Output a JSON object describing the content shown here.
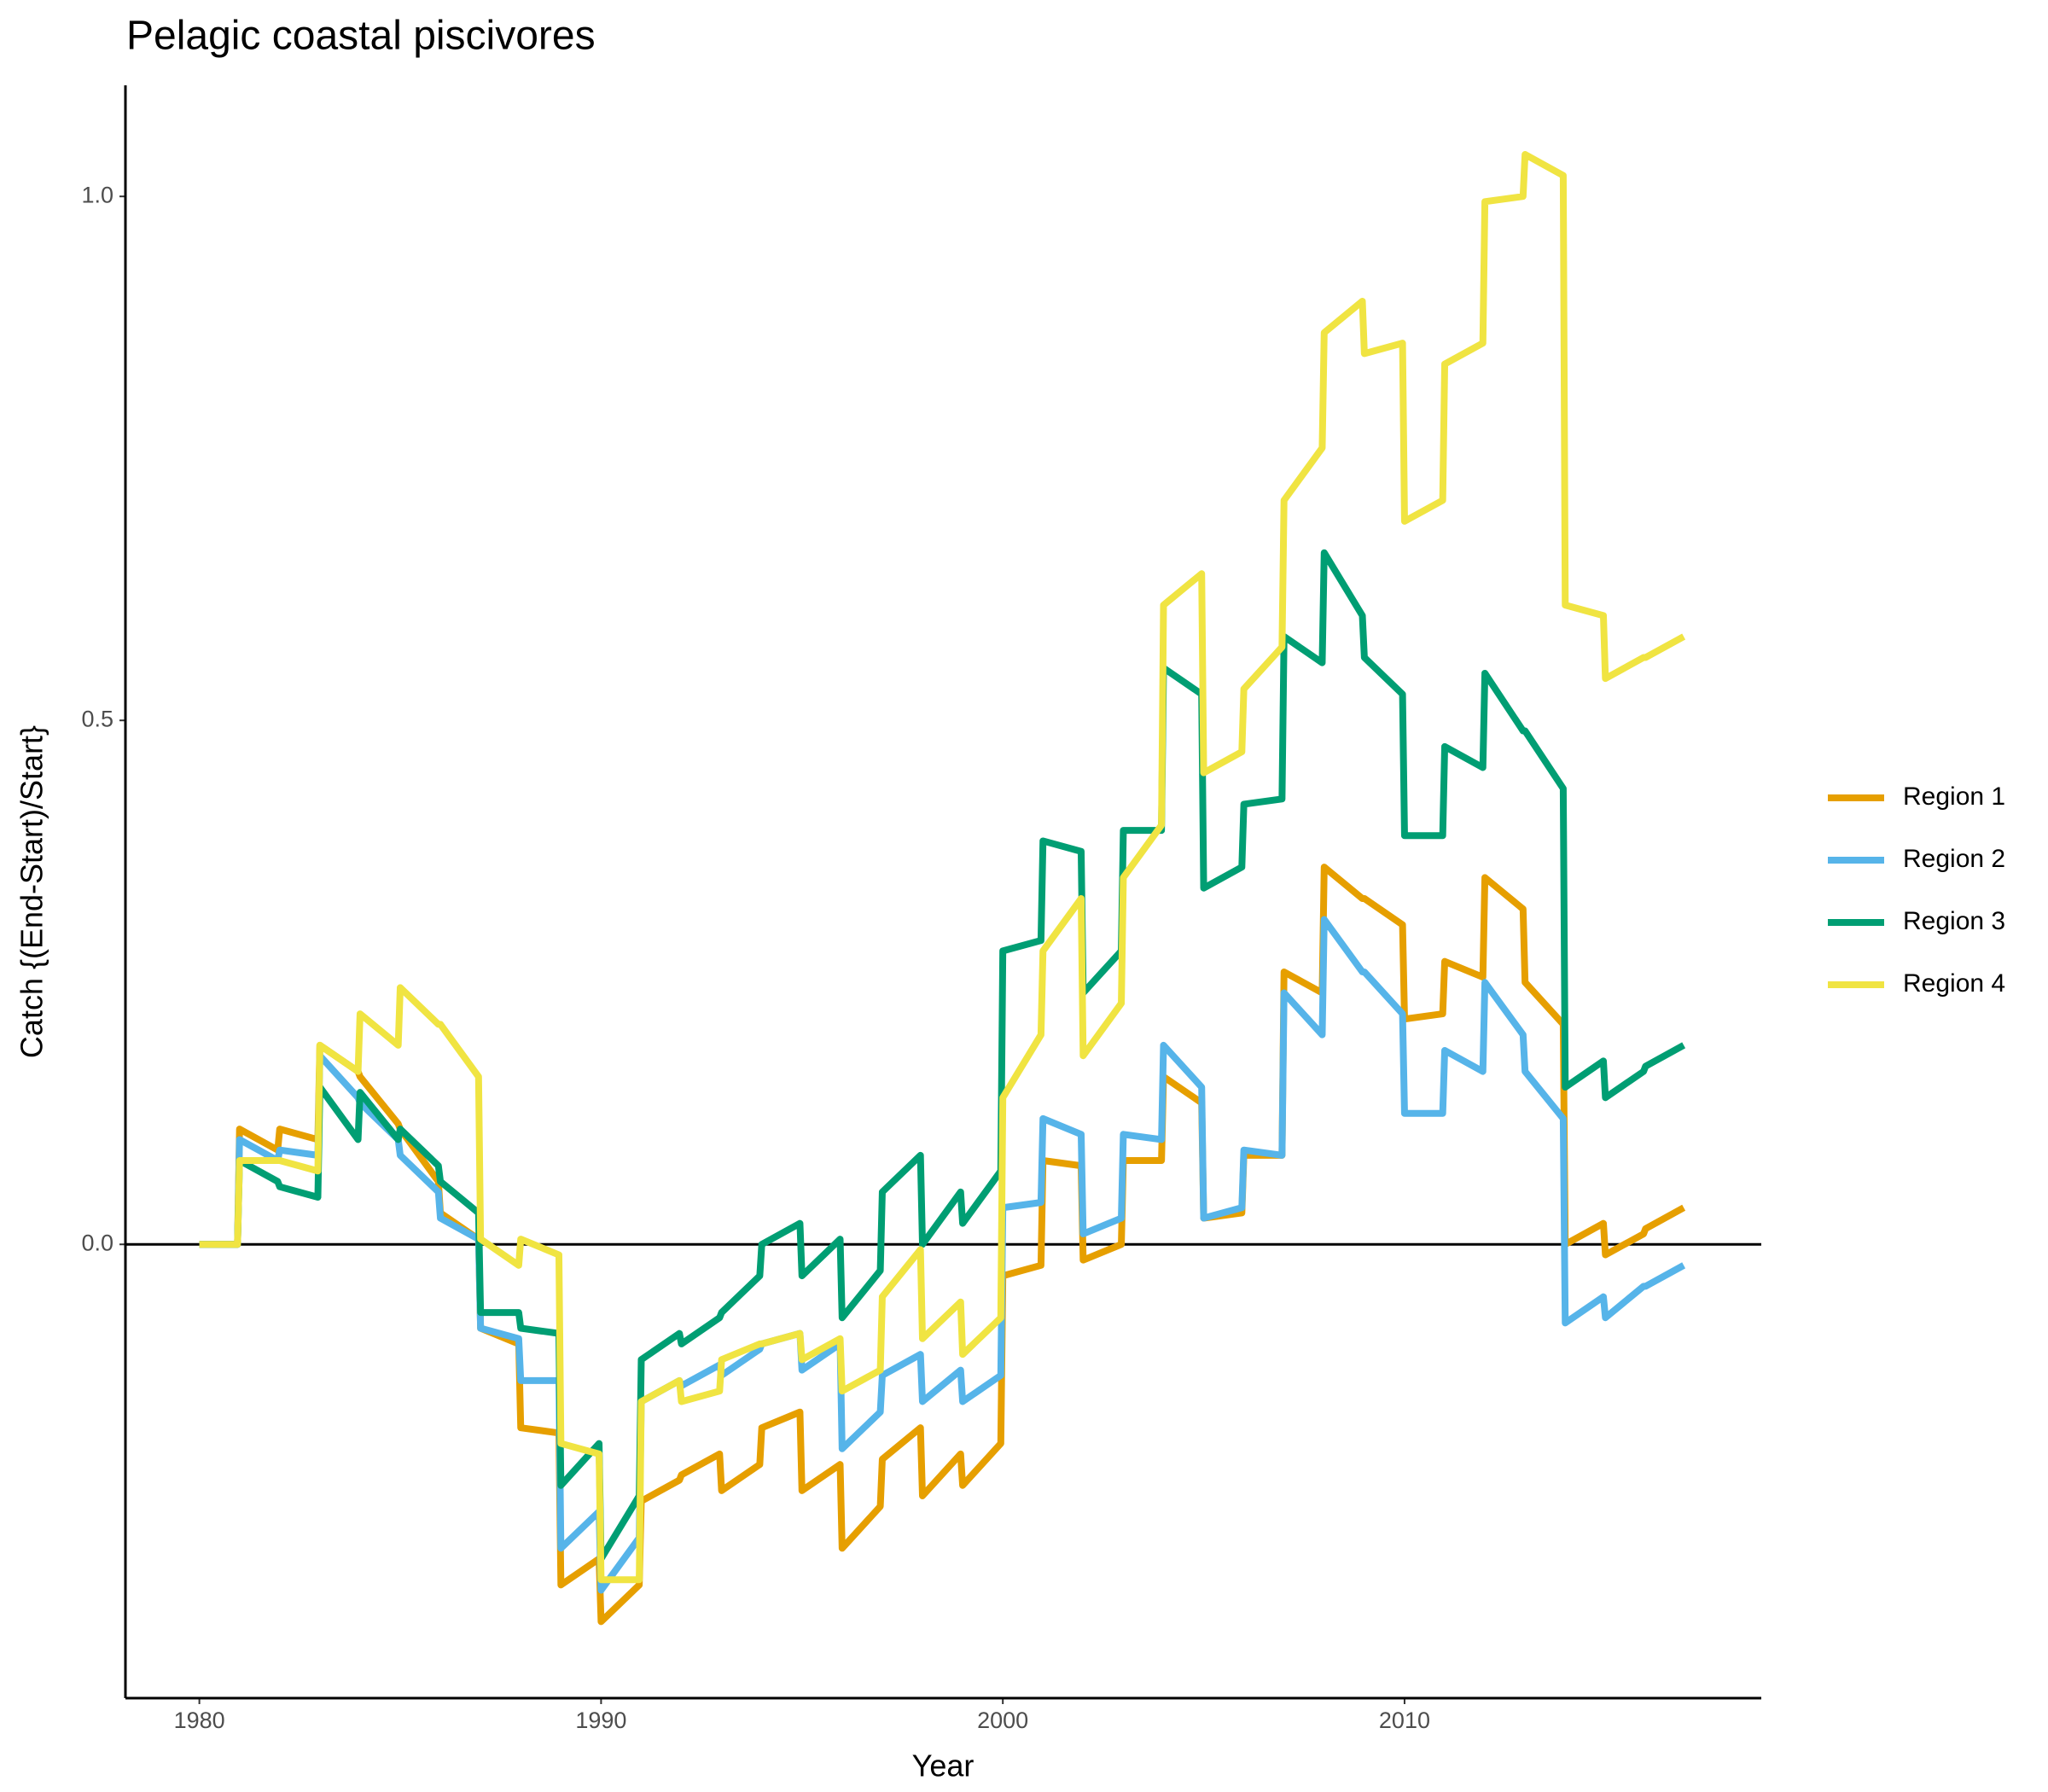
{
  "chart_data": {
    "type": "line",
    "title": "Pelagic coastal piscivores",
    "x_label": "Year",
    "y_label": "Catch {(End-Start)/Start}",
    "x": [
      1980,
      1980.95,
      1981,
      1981.95,
      1982,
      1982.95,
      1983,
      1983.95,
      1984,
      1984.95,
      1985,
      1985.95,
      1986,
      1986.95,
      1987,
      1987.95,
      1988,
      1988.95,
      1989,
      1989.95,
      1990,
      1990.95,
      1991,
      1991.95,
      1992,
      1992.95,
      1993,
      1993.95,
      1994,
      1994.95,
      1995,
      1995.95,
      1996,
      1996.95,
      1997,
      1997.95,
      1998,
      1998.95,
      1999,
      1999.95,
      2000,
      2000.95,
      2001,
      2001.95,
      2002,
      2002.95,
      2003,
      2003.95,
      2004,
      2004.95,
      2005,
      2005.95,
      2006,
      2006.95,
      2007,
      2007.95,
      2008,
      2008.95,
      2009,
      2009.95,
      2010,
      2010.95,
      2011,
      2011.95,
      2012,
      2012.95,
      2013,
      2013.95,
      2014,
      2014.95,
      2015,
      2015.95,
      2016,
      2016.95
    ],
    "series": [
      {
        "name": "Region 1",
        "color": "#E69F00",
        "values": [
          0,
          0,
          0.11,
          0.09,
          0.11,
          0.1,
          0.19,
          0.165,
          0.16,
          0.115,
          0.11,
          0.06,
          0.03,
          0.005,
          -0.08,
          -0.095,
          -0.175,
          -0.18,
          -0.325,
          -0.3,
          -0.36,
          -0.325,
          -0.245,
          -0.225,
          -0.22,
          -0.2,
          -0.235,
          -0.21,
          -0.175,
          -0.16,
          -0.235,
          -0.21,
          -0.29,
          -0.25,
          -0.205,
          -0.175,
          -0.24,
          -0.2,
          -0.23,
          -0.19,
          -0.03,
          -0.02,
          0.08,
          0.075,
          -0.015,
          0,
          0.08,
          0.08,
          0.16,
          0.135,
          0.025,
          0.03,
          0.085,
          0.085,
          0.26,
          0.24,
          0.36,
          0.33,
          0.33,
          0.305,
          0.215,
          0.22,
          0.27,
          0.255,
          0.35,
          0.32,
          0.25,
          0.21,
          0,
          0.02,
          -0.01,
          0.01,
          0.015,
          0.035
        ]
      },
      {
        "name": "Region 2",
        "color": "#56B4E9",
        "values": [
          0,
          0,
          0.1,
          0.08,
          0.09,
          0.085,
          0.18,
          0.14,
          0.135,
          0.1,
          0.085,
          0.05,
          0.025,
          0.005,
          -0.08,
          -0.09,
          -0.13,
          -0.13,
          -0.29,
          -0.255,
          -0.33,
          -0.28,
          -0.15,
          -0.13,
          -0.135,
          -0.115,
          -0.125,
          -0.1,
          -0.095,
          -0.085,
          -0.12,
          -0.095,
          -0.195,
          -0.16,
          -0.125,
          -0.105,
          -0.15,
          -0.12,
          -0.15,
          -0.125,
          0.035,
          0.04,
          0.12,
          0.105,
          0.01,
          0.025,
          0.105,
          0.1,
          0.19,
          0.15,
          0.025,
          0.035,
          0.09,
          0.085,
          0.24,
          0.2,
          0.31,
          0.26,
          0.26,
          0.22,
          0.125,
          0.125,
          0.185,
          0.165,
          0.25,
          0.2,
          0.165,
          0.12,
          -0.075,
          -0.05,
          -0.07,
          -0.04,
          -0.04,
          -0.02
        ]
      },
      {
        "name": "Region 3",
        "color": "#009E73",
        "values": [
          0,
          0,
          0.08,
          0.06,
          0.055,
          0.045,
          0.15,
          0.1,
          0.145,
          0.1,
          0.11,
          0.075,
          0.06,
          0.03,
          -0.065,
          -0.065,
          -0.08,
          -0.085,
          -0.23,
          -0.19,
          -0.3,
          -0.24,
          -0.11,
          -0.085,
          -0.095,
          -0.07,
          -0.065,
          -0.03,
          0,
          0.02,
          -0.03,
          0.005,
          -0.07,
          -0.025,
          0.05,
          0.085,
          0,
          0.05,
          0.02,
          0.07,
          0.28,
          0.29,
          0.385,
          0.375,
          0.24,
          0.28,
          0.395,
          0.395,
          0.55,
          0.525,
          0.34,
          0.36,
          0.42,
          0.425,
          0.58,
          0.555,
          0.66,
          0.6,
          0.56,
          0.525,
          0.39,
          0.39,
          0.475,
          0.455,
          0.545,
          0.49,
          0.49,
          0.435,
          0.15,
          0.175,
          0.14,
          0.165,
          0.17,
          0.19
        ]
      },
      {
        "name": "Region 4",
        "color": "#F0E442",
        "values": [
          0,
          0,
          0.08,
          0.08,
          0.08,
          0.07,
          0.19,
          0.165,
          0.22,
          0.19,
          0.245,
          0.21,
          0.21,
          0.16,
          0.005,
          -0.02,
          0.005,
          -0.01,
          -0.19,
          -0.2,
          -0.32,
          -0.32,
          -0.15,
          -0.13,
          -0.15,
          -0.14,
          -0.11,
          -0.095,
          -0.095,
          -0.085,
          -0.11,
          -0.09,
          -0.14,
          -0.12,
          -0.05,
          -0.005,
          -0.09,
          -0.055,
          -0.105,
          -0.07,
          0.14,
          0.2,
          0.28,
          0.33,
          0.18,
          0.23,
          0.35,
          0.4,
          0.61,
          0.64,
          0.45,
          0.47,
          0.53,
          0.57,
          0.71,
          0.76,
          0.87,
          0.9,
          0.85,
          0.86,
          0.69,
          0.71,
          0.84,
          0.86,
          0.995,
          1.0,
          1.04,
          1.02,
          0.61,
          0.6,
          0.54,
          0.56,
          0.56,
          0.58
        ]
      }
    ],
    "xlim": [
      1978.16,
      2018.88
    ],
    "ylim": [
      -0.433,
      1.106
    ],
    "xticks": [
      1980,
      1990,
      2000,
      2010
    ],
    "yticks": [
      {
        "value": 0,
        "label": "0.0"
      },
      0.5,
      {
        "value": 1,
        "label": "1.0"
      }
    ],
    "hline": 0,
    "legend": "right"
  }
}
